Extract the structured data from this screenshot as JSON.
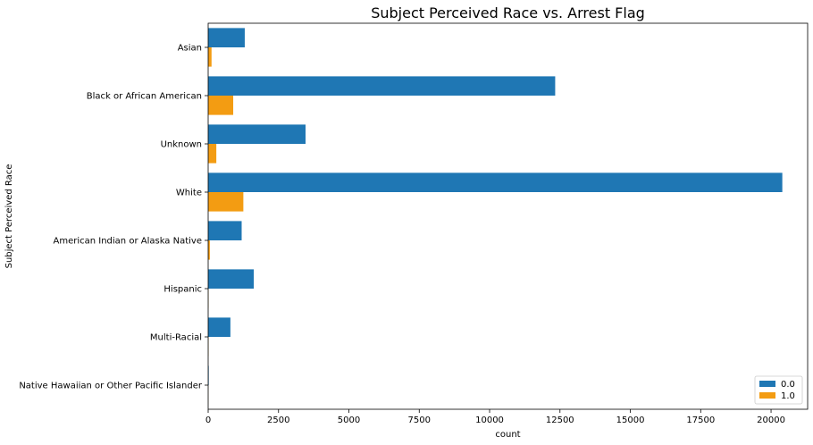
{
  "chart_data": {
    "type": "bar",
    "orientation": "horizontal",
    "title": "Subject Perceived Race vs. Arrest Flag",
    "xlabel": "count",
    "ylabel": "Subject Perceived Race",
    "categories": [
      "Asian",
      "Black or African American",
      "Unknown",
      "White",
      "American Indian or Alaska Native",
      "Hispanic",
      "Multi-Racial",
      "Native Hawaiian or Other Pacific Islander"
    ],
    "series": [
      {
        "name": "0.0",
        "color": "#1f77b4",
        "values": [
          1300,
          12330,
          3460,
          20400,
          1190,
          1620,
          790,
          20
        ]
      },
      {
        "name": "1.0",
        "color": "#f39c12",
        "values": [
          120,
          890,
          290,
          1250,
          60,
          10,
          10,
          3
        ]
      }
    ],
    "xlim": [
      0,
      21300
    ],
    "xticks": [
      0,
      2500,
      5000,
      7500,
      10000,
      12500,
      15000,
      17500,
      20000
    ],
    "grid": false,
    "legend": {
      "placement": "lower-right"
    }
  }
}
